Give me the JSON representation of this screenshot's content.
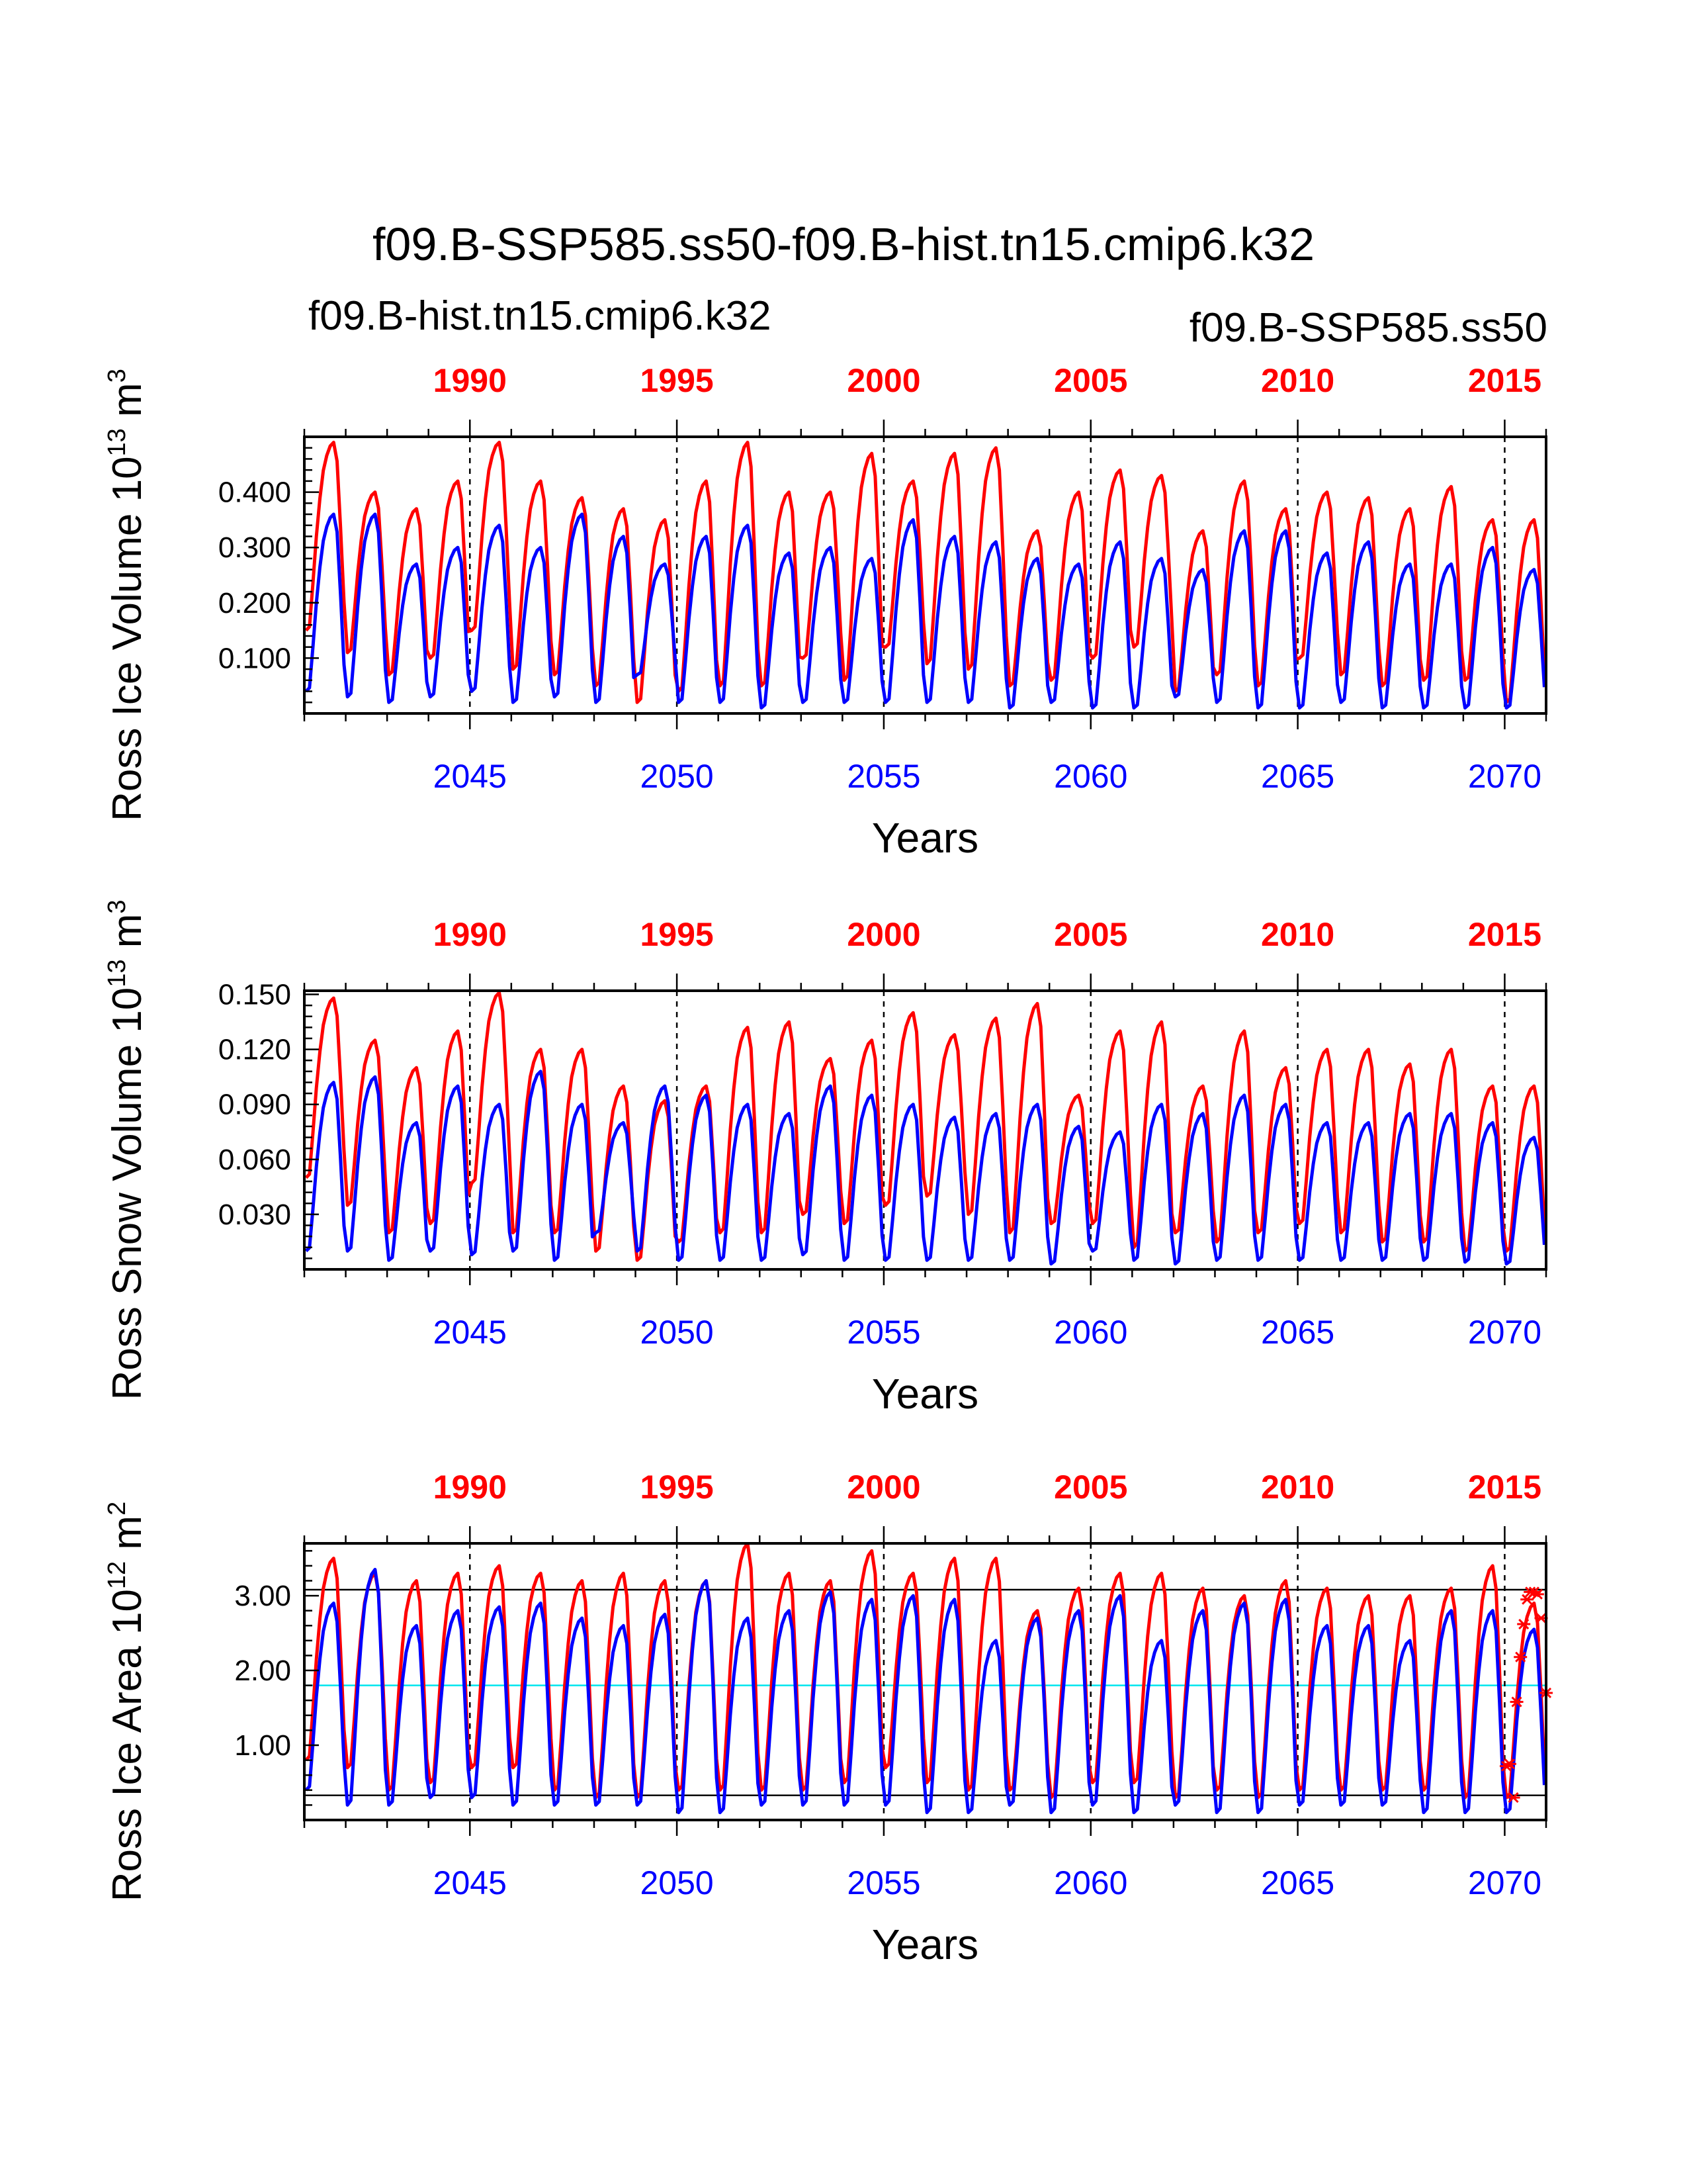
{
  "title": "f09.B-SSP585.ss50-f09.B-hist.tn15.cmip6.k32",
  "legend": {
    "red_case": "f09.B-hist.tn15.cmip6.k32",
    "blue_case": "f09.B-SSP585.ss50"
  },
  "colors": {
    "red": "#ff0000",
    "blue": "#0000ff",
    "cyan": "#00e5ee",
    "black": "#000000"
  },
  "chart_data": [
    {
      "type": "line",
      "ylabel": "Ross Ice Volume 10",
      "ylabel_exp": "13",
      "ylabel_unit": "m",
      "ylabel_unit_exp": "3",
      "xlabel": "Years",
      "ylim": [
        0.0,
        0.5
      ],
      "yticks": [
        0.1,
        0.2,
        0.3,
        0.4
      ],
      "ytick_labels": [
        "0.100",
        "0.200",
        "0.300",
        "0.400"
      ],
      "xlim_bottom": [
        2041,
        2071
      ],
      "xticks_bottom": [
        2045,
        2050,
        2055,
        2060,
        2065,
        2070
      ],
      "xlim_top": [
        1986,
        2016
      ],
      "xticks_top": [
        1990,
        1995,
        2000,
        2005,
        2010,
        2015
      ],
      "dashed_vlines_bottom": [
        2045,
        2050,
        2055,
        2060,
        2065,
        2070
      ],
      "hlines": [],
      "series": [
        {
          "color": "#ff0000",
          "axis": "top",
          "annual_max": [
            0.49,
            0.4,
            0.37,
            0.42,
            0.49,
            0.42,
            0.39,
            0.37,
            0.35,
            0.42,
            0.49,
            0.4,
            0.4,
            0.47,
            0.42,
            0.47,
            0.48,
            0.33,
            0.4,
            0.44,
            0.43,
            0.33,
            0.42,
            0.37,
            0.4,
            0.39,
            0.37,
            0.41,
            0.35,
            0.35
          ],
          "annual_min": [
            0.15,
            0.11,
            0.07,
            0.1,
            0.15,
            0.08,
            0.07,
            0.05,
            0.02,
            0.04,
            0.05,
            0.05,
            0.1,
            0.06,
            0.12,
            0.09,
            0.08,
            0.05,
            0.06,
            0.1,
            0.12,
            0.04,
            0.07,
            0.05,
            0.1,
            0.07,
            0.05,
            0.06,
            0.06,
            0.02
          ]
        },
        {
          "color": "#0000ff",
          "axis": "bottom",
          "annual_max": [
            0.36,
            0.36,
            0.27,
            0.3,
            0.34,
            0.3,
            0.36,
            0.32,
            0.27,
            0.32,
            0.34,
            0.29,
            0.3,
            0.28,
            0.35,
            0.32,
            0.31,
            0.28,
            0.27,
            0.31,
            0.28,
            0.26,
            0.33,
            0.33,
            0.29,
            0.31,
            0.27,
            0.27,
            0.3,
            0.26
          ],
          "annual_min": [
            0.04,
            0.03,
            0.02,
            0.03,
            0.04,
            0.02,
            0.03,
            0.02,
            0.07,
            0.02,
            0.02,
            0.01,
            0.02,
            0.02,
            0.02,
            0.02,
            0.02,
            0.01,
            0.02,
            0.01,
            0.01,
            0.03,
            0.02,
            0.01,
            0.01,
            0.02,
            0.01,
            0.01,
            0.01,
            0.01
          ]
        }
      ]
    },
    {
      "type": "line",
      "ylabel": "Ross Snow Volume 10",
      "ylabel_exp": "13",
      "ylabel_unit": "m",
      "ylabel_unit_exp": "3",
      "xlabel": "Years",
      "ylim": [
        0.0,
        0.152
      ],
      "yticks": [
        0.03,
        0.06,
        0.09,
        0.12,
        0.15
      ],
      "ytick_labels": [
        "0.030",
        "0.060",
        "0.090",
        "0.120",
        "0.150"
      ],
      "xlim_bottom": [
        2041,
        2071
      ],
      "xticks_bottom": [
        2045,
        2050,
        2055,
        2060,
        2065,
        2070
      ],
      "xlim_top": [
        1986,
        2016
      ],
      "xticks_top": [
        1990,
        1995,
        2000,
        2005,
        2010,
        2015
      ],
      "dashed_vlines_bottom": [
        2045,
        2050,
        2055,
        2060,
        2065,
        2070
      ],
      "hlines": [],
      "series": [
        {
          "color": "#ff0000",
          "axis": "top",
          "annual_max": [
            0.148,
            0.125,
            0.11,
            0.13,
            0.151,
            0.12,
            0.12,
            0.1,
            0.092,
            0.1,
            0.132,
            0.135,
            0.115,
            0.125,
            0.14,
            0.128,
            0.137,
            0.145,
            0.095,
            0.13,
            0.135,
            0.1,
            0.13,
            0.11,
            0.12,
            0.12,
            0.112,
            0.12,
            0.1,
            0.1
          ],
          "annual_min": [
            0.05,
            0.035,
            0.02,
            0.025,
            0.047,
            0.02,
            0.02,
            0.01,
            0.005,
            0.015,
            0.02,
            0.02,
            0.03,
            0.025,
            0.035,
            0.04,
            0.03,
            0.02,
            0.025,
            0.025,
            0.012,
            0.02,
            0.015,
            0.02,
            0.025,
            0.02,
            0.015,
            0.015,
            0.01,
            0.01
          ]
        },
        {
          "color": "#0000ff",
          "axis": "bottom",
          "annual_max": [
            0.102,
            0.105,
            0.08,
            0.1,
            0.09,
            0.108,
            0.09,
            0.08,
            0.1,
            0.095,
            0.09,
            0.085,
            0.1,
            0.095,
            0.09,
            0.083,
            0.085,
            0.09,
            0.078,
            0.075,
            0.09,
            0.085,
            0.095,
            0.09,
            0.08,
            0.08,
            0.085,
            0.085,
            0.08,
            0.072
          ],
          "annual_min": [
            0.01,
            0.01,
            0.005,
            0.01,
            0.008,
            0.01,
            0.005,
            0.02,
            0.01,
            0.005,
            0.005,
            0.005,
            0.008,
            0.005,
            0.005,
            0.005,
            0.005,
            0.005,
            0.003,
            0.01,
            0.005,
            0.003,
            0.005,
            0.005,
            0.005,
            0.005,
            0.005,
            0.005,
            0.004,
            0.003
          ]
        }
      ]
    },
    {
      "type": "line",
      "ylabel": "Ross Ice Area 10",
      "ylabel_exp": "12",
      "ylabel_unit": "m",
      "ylabel_unit_exp": "2",
      "xlabel": "Years",
      "ylim": [
        0.0,
        3.7
      ],
      "yticks": [
        1.0,
        2.0,
        3.0
      ],
      "ytick_labels": [
        "1.00",
        "2.00",
        "3.00"
      ],
      "xlim_bottom": [
        2041,
        2071
      ],
      "xticks_bottom": [
        2045,
        2050,
        2055,
        2060,
        2065,
        2070
      ],
      "xlim_top": [
        1986,
        2016
      ],
      "xticks_top": [
        1990,
        1995,
        2000,
        2005,
        2010,
        2015
      ],
      "dashed_vlines_bottom": [
        2045,
        2050,
        2055,
        2060,
        2065,
        2070
      ],
      "hlines": [
        {
          "y": 3.08,
          "color": "#000000"
        },
        {
          "y": 1.8,
          "color": "#00e5ee"
        },
        {
          "y": 0.33,
          "color": "#000000"
        }
      ],
      "series": [
        {
          "color": "#ff0000",
          "axis": "top",
          "annual_max": [
            3.5,
            3.3,
            3.2,
            3.3,
            3.4,
            3.3,
            3.2,
            3.3,
            3.2,
            3.2,
            3.7,
            3.3,
            3.2,
            3.6,
            3.3,
            3.5,
            3.5,
            2.8,
            3.1,
            3.3,
            3.3,
            3.1,
            3.0,
            3.2,
            3.1,
            3.0,
            3.0,
            3.1,
            3.4,
            2.9
          ],
          "annual_min": [
            0.8,
            0.7,
            0.4,
            0.5,
            0.7,
            0.7,
            0.4,
            0.3,
            0.3,
            0.4,
            0.4,
            0.4,
            0.4,
            0.5,
            0.7,
            0.5,
            0.4,
            0.4,
            0.3,
            0.5,
            0.5,
            0.3,
            0.4,
            0.3,
            0.4,
            0.4,
            0.4,
            0.4,
            0.3,
            0.3
          ]
        },
        {
          "color": "#0000ff",
          "axis": "bottom",
          "annual_max": [
            2.9,
            3.35,
            2.6,
            2.8,
            2.85,
            2.9,
            2.7,
            2.6,
            2.75,
            3.2,
            2.7,
            2.8,
            3.05,
            2.95,
            3.0,
            2.95,
            2.4,
            2.7,
            2.8,
            3.0,
            2.4,
            2.8,
            2.9,
            2.95,
            2.6,
            2.6,
            2.4,
            2.8,
            2.8,
            2.55
          ],
          "annual_min": [
            0.4,
            0.2,
            0.2,
            0.3,
            0.3,
            0.2,
            0.2,
            0.2,
            0.2,
            0.1,
            0.1,
            0.2,
            0.2,
            0.2,
            0.2,
            0.1,
            0.1,
            0.2,
            0.1,
            0.2,
            0.1,
            0.2,
            0.1,
            0.1,
            0.2,
            0.2,
            0.2,
            0.1,
            0.1,
            0.1
          ]
        }
      ],
      "markers": {
        "color": "#ff0000",
        "axis": "bottom",
        "symbol": "asterisk",
        "points": [
          [
            2070.04,
            0.72
          ],
          [
            2070.12,
            0.75
          ],
          [
            2070.21,
            0.3
          ],
          [
            2070.29,
            1.58
          ],
          [
            2070.38,
            2.18
          ],
          [
            2070.46,
            2.62
          ],
          [
            2070.54,
            2.95
          ],
          [
            2070.62,
            3.05
          ],
          [
            2070.71,
            3.05
          ],
          [
            2070.79,
            3.02
          ],
          [
            2070.88,
            2.7
          ],
          [
            2071.0,
            1.7
          ]
        ]
      }
    }
  ]
}
